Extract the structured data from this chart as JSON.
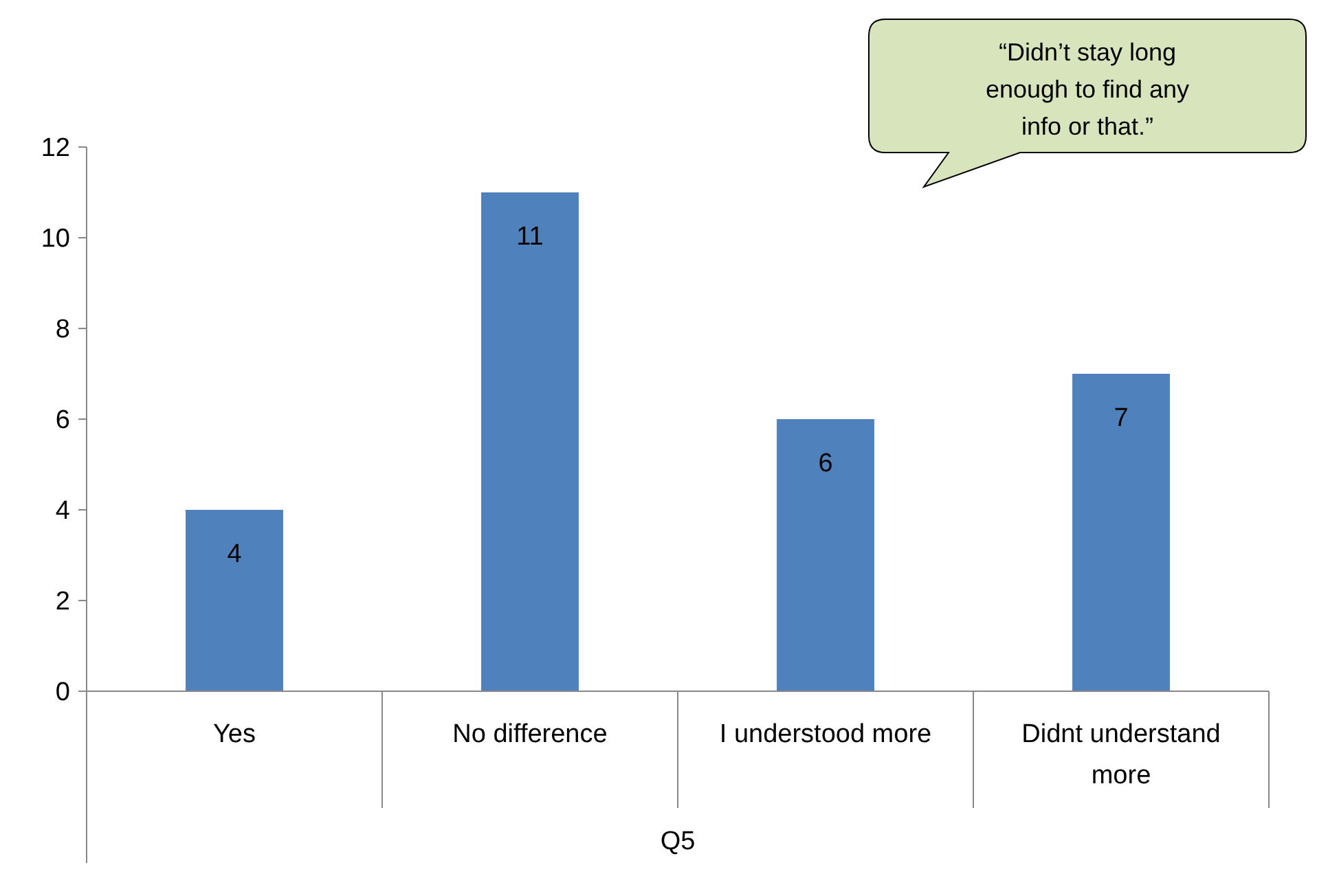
{
  "chart_data": {
    "type": "bar",
    "categories": [
      "Yes",
      "No difference",
      "I understood more",
      "Didnt understand more"
    ],
    "values": [
      4,
      11,
      6,
      7
    ],
    "color": "#4f81bd",
    "ylim": [
      0,
      12
    ],
    "yticks": [
      0,
      2,
      4,
      6,
      8,
      10,
      12
    ],
    "xlabel": "Q5",
    "data_labels": true,
    "annotations": [
      "“Didn’t stay long enough to find any info or that.”"
    ]
  }
}
